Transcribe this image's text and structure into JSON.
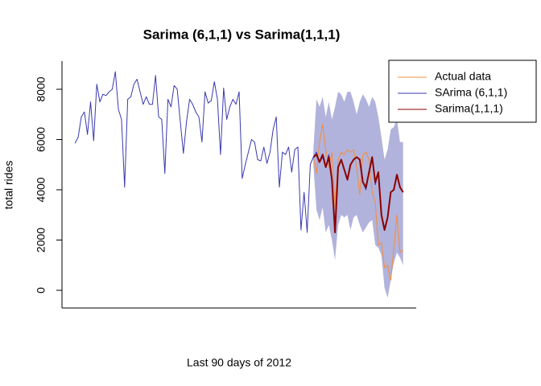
{
  "chart_data": {
    "type": "line",
    "title": "Sarima (6,1,1) vs Sarima(1,1,1)",
    "x_label": "Last 90 days of 2012",
    "y_label": "total rides",
    "x": [
      1,
      2,
      3,
      4,
      5,
      6,
      7,
      8,
      9,
      10,
      11,
      12,
      13,
      14,
      15,
      16,
      17,
      18,
      19,
      20,
      21,
      22,
      23,
      24,
      25,
      26,
      27,
      28,
      29,
      30,
      31,
      32,
      33,
      34,
      35,
      36,
      37,
      38,
      39,
      40,
      41,
      42,
      43,
      44,
      45,
      46,
      47,
      48,
      49,
      50,
      51,
      52,
      53,
      54,
      55,
      56,
      57,
      58,
      59,
      60,
      61,
      62,
      63,
      64,
      65,
      66,
      67,
      68,
      69,
      70,
      71,
      72,
      73,
      74,
      75,
      76,
      77,
      78,
      79,
      80,
      81,
      82,
      83,
      84,
      85,
      86,
      87,
      88,
      89,
      90,
      91,
      92,
      93,
      94,
      95,
      96,
      97,
      98,
      99,
      100,
      101,
      102,
      103,
      104,
      105,
      106,
      107
    ],
    "series": [
      {
        "name": "Actual data",
        "color": "#f58c3c",
        "width": 1,
        "values": [
          null,
          null,
          null,
          null,
          null,
          null,
          null,
          null,
          null,
          null,
          null,
          null,
          null,
          null,
          null,
          null,
          null,
          null,
          null,
          null,
          null,
          null,
          null,
          null,
          null,
          null,
          null,
          null,
          null,
          null,
          null,
          null,
          null,
          null,
          null,
          null,
          null,
          null,
          null,
          null,
          null,
          null,
          null,
          null,
          null,
          null,
          null,
          null,
          null,
          null,
          null,
          null,
          null,
          null,
          null,
          null,
          null,
          null,
          null,
          null,
          null,
          null,
          null,
          null,
          null,
          null,
          null,
          null,
          null,
          null,
          null,
          null,
          null,
          null,
          null,
          null,
          null,
          5300,
          4650,
          5900,
          6600,
          5600,
          4900,
          5500,
          3300,
          5200,
          5500,
          5400,
          5600,
          5500,
          5600,
          4900,
          3800,
          5400,
          5500,
          5200,
          3900,
          3500,
          1800,
          1900,
          900,
          1000,
          400,
          1700,
          3000,
          1500,
          1600
        ]
      },
      {
        "name": "SArima (6,1,1)",
        "color": "#3a3ab0",
        "width": 1,
        "values": [
          5850,
          6100,
          6900,
          7100,
          6200,
          7500,
          5950,
          8200,
          7500,
          7800,
          7750,
          7900,
          8000,
          8700,
          7200,
          6800,
          4100,
          7600,
          7700,
          8200,
          8400,
          7900,
          7400,
          7700,
          7400,
          7400,
          8550,
          6900,
          6800,
          4650,
          7600,
          7300,
          8150,
          8000,
          6700,
          5450,
          6700,
          7600,
          7400,
          7100,
          6900,
          5900,
          7900,
          7450,
          7550,
          8300,
          7600,
          5400,
          8050,
          6800,
          7300,
          7600,
          7400,
          7900,
          4450,
          5000,
          5500,
          6000,
          5900,
          5200,
          5150,
          5700,
          5050,
          5500,
          6400,
          6900,
          4100,
          5500,
          5400,
          5700,
          4700,
          5600,
          5700,
          2400,
          3900,
          2300,
          5000,
          5300,
          5500,
          5100,
          5300,
          4900,
          5400,
          4400,
          2300,
          4900,
          5200,
          4800,
          4400,
          5000,
          5200,
          5300,
          5200,
          4300,
          4000,
          4700,
          5300,
          4200,
          4700,
          3000,
          2400,
          2900,
          3900,
          4000,
          4600,
          4100,
          3900
        ]
      },
      {
        "name": "Sarima(1,1,1)",
        "color": "#8b0000",
        "width": 2,
        "values": [
          null,
          null,
          null,
          null,
          null,
          null,
          null,
          null,
          null,
          null,
          null,
          null,
          null,
          null,
          null,
          null,
          null,
          null,
          null,
          null,
          null,
          null,
          null,
          null,
          null,
          null,
          null,
          null,
          null,
          null,
          null,
          null,
          null,
          null,
          null,
          null,
          null,
          null,
          null,
          null,
          null,
          null,
          null,
          null,
          null,
          null,
          null,
          null,
          null,
          null,
          null,
          null,
          null,
          null,
          null,
          null,
          null,
          null,
          null,
          null,
          null,
          null,
          null,
          null,
          null,
          null,
          null,
          null,
          null,
          null,
          null,
          null,
          null,
          null,
          null,
          null,
          null,
          5300,
          5400,
          5100,
          5400,
          4900,
          5300,
          4400,
          2300,
          4900,
          5200,
          4800,
          4400,
          5000,
          5200,
          5300,
          5200,
          4300,
          4100,
          4700,
          5300,
          4300,
          4700,
          3000,
          2400,
          2900,
          3900,
          4000,
          4600,
          4100,
          3900
        ]
      }
    ],
    "band": {
      "color": "#b1b3dc",
      "upper": [
        null,
        null,
        null,
        null,
        null,
        null,
        null,
        null,
        null,
        null,
        null,
        null,
        null,
        null,
        null,
        null,
        null,
        null,
        null,
        null,
        null,
        null,
        null,
        null,
        null,
        null,
        null,
        null,
        null,
        null,
        null,
        null,
        null,
        null,
        null,
        null,
        null,
        null,
        null,
        null,
        null,
        null,
        null,
        null,
        null,
        null,
        null,
        null,
        null,
        null,
        null,
        null,
        null,
        null,
        null,
        null,
        null,
        null,
        null,
        null,
        null,
        null,
        null,
        null,
        null,
        null,
        null,
        null,
        null,
        null,
        null,
        null,
        null,
        null,
        null,
        null,
        null,
        5600,
        7600,
        7300,
        7700,
        6900,
        7500,
        6800,
        7300,
        7900,
        7800,
        7500,
        7900,
        7900,
        7500,
        7000,
        7500,
        7800,
        7600,
        7300,
        7700,
        7500,
        6900,
        6100,
        5200,
        5600,
        6400,
        6500,
        6800,
        5900,
        5900
      ],
      "lower": [
        null,
        null,
        null,
        null,
        null,
        null,
        null,
        null,
        null,
        null,
        null,
        null,
        null,
        null,
        null,
        null,
        null,
        null,
        null,
        null,
        null,
        null,
        null,
        null,
        null,
        null,
        null,
        null,
        null,
        null,
        null,
        null,
        null,
        null,
        null,
        null,
        null,
        null,
        null,
        null,
        null,
        null,
        null,
        null,
        null,
        null,
        null,
        null,
        null,
        null,
        null,
        null,
        null,
        null,
        null,
        null,
        null,
        null,
        null,
        null,
        null,
        null,
        null,
        null,
        null,
        null,
        null,
        null,
        null,
        null,
        null,
        null,
        null,
        null,
        null,
        null,
        null,
        5000,
        3200,
        2800,
        3300,
        2300,
        2600,
        2000,
        1200,
        2600,
        3000,
        2900,
        3000,
        2400,
        2900,
        3000,
        2600,
        2300,
        2500,
        2700,
        2800,
        1800,
        1700,
        1400,
        100,
        -300,
        400,
        1100,
        1500,
        1300,
        1000
      ]
    },
    "xlim": [
      -3.24,
      111.24
    ],
    "ylim": [
      -704,
      9120
    ],
    "yticks": [
      0,
      2000,
      4000,
      6000,
      8000
    ],
    "legend": "top-right"
  }
}
